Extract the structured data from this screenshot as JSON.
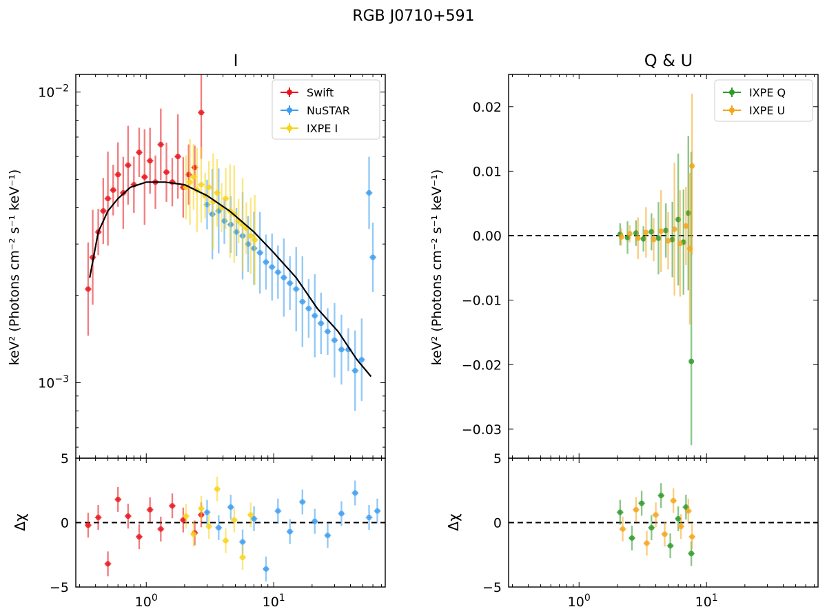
{
  "figure": {
    "suptitle": "RGB J0710+591"
  },
  "chart_data": [
    {
      "type": "scatter",
      "panel": "top-left",
      "title": "I",
      "xscale": "log",
      "yscale": "log",
      "xlim": [
        0.28,
        75
      ],
      "ylim": [
        0.00055,
        0.0115
      ],
      "ylabel": "keV² (Photons cm⁻² s⁻¹ keV⁻¹)",
      "yticks": [
        {
          "value": 0.01,
          "base": "10",
          "exp": "−2"
        },
        {
          "value": 0.001,
          "base": "10",
          "exp": "−3"
        }
      ],
      "legend": {
        "position": "top-right"
      },
      "series": [
        {
          "name": "Swift",
          "color": "#e8141a",
          "marker": "circle",
          "x": [
            0.35,
            0.38,
            0.42,
            0.46,
            0.5,
            0.55,
            0.6,
            0.66,
            0.72,
            0.8,
            0.88,
            0.97,
            1.07,
            1.18,
            1.3,
            1.44,
            1.6,
            1.77,
            1.95,
            2.15,
            2.4,
            2.7
          ],
          "y": [
            0.0021,
            0.0027,
            0.0033,
            0.0039,
            0.0043,
            0.0046,
            0.0052,
            0.0045,
            0.0056,
            0.0048,
            0.0062,
            0.0051,
            0.0058,
            0.0049,
            0.0066,
            0.0053,
            0.0049,
            0.006,
            0.0047,
            0.0052,
            0.0055,
            0.0085
          ]
        },
        {
          "name": "NuSTAR",
          "color": "#3c9df0",
          "marker": "circle",
          "x": [
            3.0,
            3.3,
            3.7,
            4.1,
            4.6,
            5.1,
            5.7,
            6.3,
            7.0,
            7.8,
            8.7,
            9.7,
            10.8,
            12.0,
            13.4,
            15.0,
            16.8,
            18.8,
            21.0,
            23.5,
            26.5,
            30.0,
            34.0,
            38.5,
            43.5,
            49.0,
            56.0,
            60.0
          ],
          "y": [
            0.0041,
            0.0038,
            0.0039,
            0.0036,
            0.0035,
            0.0033,
            0.0032,
            0.003,
            0.0029,
            0.0028,
            0.0026,
            0.0025,
            0.0024,
            0.0023,
            0.0022,
            0.0021,
            0.0019,
            0.0018,
            0.0017,
            0.0016,
            0.0015,
            0.0014,
            0.0013,
            0.0013,
            0.0011,
            0.0012,
            0.0045,
            0.0027
          ]
        },
        {
          "name": "IXPE I",
          "color": "#f7d31c",
          "marker": "circle",
          "x": [
            2.05,
            2.2,
            2.35,
            2.5,
            2.7,
            2.9,
            3.1,
            3.35,
            3.6,
            3.9,
            4.2,
            4.55,
            4.9,
            5.3,
            5.7,
            6.1,
            6.6,
            7.1
          ],
          "y": [
            0.0047,
            0.0049,
            0.0051,
            0.0046,
            0.0048,
            0.0044,
            0.0047,
            0.0042,
            0.0045,
            0.004,
            0.0043,
            0.0039,
            0.0038,
            0.0036,
            0.0035,
            0.0034,
            0.0032,
            0.0031
          ]
        },
        {
          "name": "model",
          "color": "#000000",
          "marker": "line",
          "x": [
            0.36,
            0.42,
            0.5,
            0.6,
            0.75,
            1.0,
            1.4,
            2.0,
            3.0,
            4.5,
            7.0,
            10.0,
            15.0,
            22.0,
            32.0,
            45.0,
            58.0
          ],
          "y": [
            0.0023,
            0.0033,
            0.0039,
            0.0043,
            0.0047,
            0.0049,
            0.0049,
            0.0048,
            0.0044,
            0.0039,
            0.0033,
            0.0028,
            0.0023,
            0.0018,
            0.0015,
            0.0012,
            0.00105
          ]
        }
      ]
    },
    {
      "type": "scatter",
      "panel": "bottom-left",
      "xscale": "log",
      "xlim": [
        0.28,
        75
      ],
      "ylim": [
        -5,
        5
      ],
      "ylabel": "Δχ",
      "yticks": [
        -5,
        0,
        5
      ],
      "xticks": [
        {
          "value": 1,
          "base": "10",
          "exp": "0"
        },
        {
          "value": 10,
          "base": "10",
          "exp": "1"
        }
      ],
      "reference_line": 0,
      "series": [
        {
          "name": "Swift",
          "color": "#e8141a",
          "x": [
            0.35,
            0.42,
            0.5,
            0.6,
            0.72,
            0.88,
            1.07,
            1.3,
            1.6,
            1.95,
            2.4,
            2.7
          ],
          "y": [
            -0.2,
            0.4,
            -3.2,
            1.8,
            0.5,
            -1.1,
            1.0,
            -0.5,
            1.3,
            0.2,
            -0.8,
            0.6
          ]
        },
        {
          "name": "NuSTAR",
          "color": "#3c9df0",
          "x": [
            3.0,
            3.7,
            4.6,
            5.7,
            7.0,
            8.7,
            10.8,
            13.4,
            16.8,
            21.0,
            26.5,
            34.0,
            43.5,
            56.0,
            65.0
          ],
          "y": [
            0.8,
            -0.4,
            1.2,
            -1.5,
            0.3,
            -3.6,
            0.9,
            -0.7,
            1.6,
            0.1,
            -1.0,
            0.7,
            2.3,
            0.4,
            0.9
          ]
        },
        {
          "name": "IXPE I",
          "color": "#f7d31c",
          "x": [
            2.05,
            2.35,
            2.7,
            3.1,
            3.6,
            4.2,
            4.9,
            5.7,
            6.6
          ],
          "y": [
            0.5,
            -0.9,
            1.1,
            -0.3,
            2.6,
            -1.4,
            0.2,
            -2.7,
            0.6
          ]
        }
      ]
    },
    {
      "type": "scatter",
      "panel": "top-right",
      "title": "Q & U",
      "xscale": "log",
      "xlim": [
        0.28,
        75
      ],
      "ylim": [
        -0.0345,
        0.025
      ],
      "ylabel": "keV² (Photons cm⁻² s⁻¹ keV⁻¹)",
      "yticks": [
        {
          "value": 0.02,
          "label": "0.02"
        },
        {
          "value": 0.01,
          "label": "0.01"
        },
        {
          "value": 0.0,
          "label": "0.00"
        },
        {
          "value": -0.01,
          "label": "−0.01"
        },
        {
          "value": -0.02,
          "label": "−0.02"
        },
        {
          "value": -0.03,
          "label": "−0.03"
        }
      ],
      "reference_line": 0,
      "legend": {
        "position": "top-right"
      },
      "series": [
        {
          "name": "IXPE Q",
          "color": "#2e9a2a",
          "marker": "circle",
          "x": [
            2.1,
            2.4,
            2.8,
            3.2,
            3.7,
            4.2,
            4.8,
            5.4,
            6.0,
            6.6,
            7.2,
            7.6
          ],
          "y": [
            0.0002,
            -0.0003,
            0.0004,
            -0.0005,
            0.0006,
            -0.0004,
            0.0008,
            -0.0006,
            0.0025,
            -0.001,
            0.0035,
            -0.0195
          ]
        },
        {
          "name": "IXPE U",
          "color": "#f5a51c",
          "marker": "circle",
          "x": [
            2.15,
            2.5,
            2.9,
            3.35,
            3.85,
            4.4,
            5.0,
            5.6,
            6.2,
            6.9,
            7.4,
            7.7
          ],
          "y": [
            -0.0002,
            0.0003,
            -0.0004,
            0.0005,
            -0.0006,
            0.0007,
            -0.0008,
            0.001,
            -0.0012,
            0.0015,
            -0.002,
            0.0108
          ]
        }
      ]
    },
    {
      "type": "scatter",
      "panel": "bottom-right",
      "xscale": "log",
      "xlim": [
        0.28,
        75
      ],
      "ylim": [
        -5,
        5
      ],
      "ylabel": "Δχ",
      "yticks": [
        -5,
        0,
        5
      ],
      "xticks": [
        {
          "value": 1,
          "base": "10",
          "exp": "0"
        },
        {
          "value": 10,
          "base": "10",
          "exp": "1"
        }
      ],
      "reference_line": 0,
      "series": [
        {
          "name": "IXPE Q",
          "color": "#2e9a2a",
          "x": [
            2.1,
            2.6,
            3.1,
            3.7,
            4.4,
            5.2,
            6.0,
            6.9,
            7.6
          ],
          "y": [
            0.8,
            -1.2,
            1.5,
            -0.4,
            2.1,
            -1.8,
            0.3,
            1.2,
            -2.4
          ]
        },
        {
          "name": "IXPE U",
          "color": "#f5a51c",
          "x": [
            2.2,
            2.8,
            3.4,
            4.0,
            4.7,
            5.5,
            6.3,
            7.2,
            7.7
          ],
          "y": [
            -0.5,
            1.0,
            -1.6,
            0.6,
            -0.9,
            1.7,
            -0.3,
            0.9,
            -1.1
          ]
        }
      ]
    }
  ]
}
